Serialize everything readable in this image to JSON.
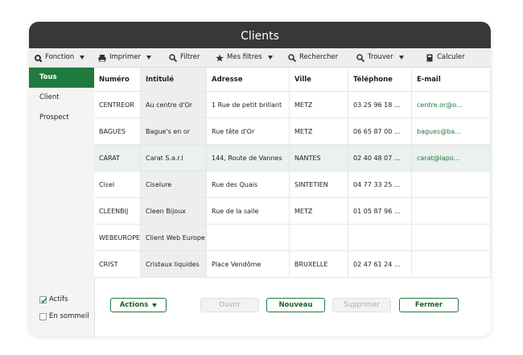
{
  "window": {
    "title": "Clients"
  },
  "toolbar": [
    "Fonction",
    "Imprimer",
    "Filtrer",
    "Mes filtres",
    "Rechercher",
    "Trouver",
    "Calculer"
  ],
  "sidebar": {
    "filters": [
      "Tous",
      "Client",
      "Prospect"
    ],
    "checkboxes": [
      "Actifs",
      "En sommeil"
    ]
  },
  "table": {
    "columns": [
      "Numéro",
      "Intitulé",
      "Adresse",
      "Ville",
      "Téléphone",
      "E-mail"
    ],
    "rows": [
      [
        "CENTREOR",
        "Au centre d'Or",
        "1 Rue de petit brillant",
        "METZ",
        "03 25 96 18 ...",
        "centre.or@o..."
      ],
      [
        "BAGUES",
        "Bague's en or",
        "Rue tête d'Or",
        "METZ",
        "06 65 87 00 ...",
        "bagues@ba..."
      ],
      [
        "CARAT",
        "Carat S.a.r.l",
        "144, Route de Vannes",
        "NANTES",
        "02 40 48 07 ...",
        "carat@lapo..."
      ],
      [
        "Cisel",
        "Ciselure",
        "Rue des Quais",
        "SINTETIEN",
        "04 77 33 25 ...",
        null
      ],
      [
        "CLEENBIJ",
        "Cleen Bijoux",
        "Rue de la salle",
        "METZ",
        "01 05 87 96 ...",
        null
      ],
      [
        "WEBEUROPE",
        "Client Web Europe",
        null,
        null,
        null,
        null
      ],
      [
        "CRIST",
        "Cristaux liquides",
        "Place Vendôme",
        "BRUXELLE",
        "02 47 61 24 ...",
        null
      ]
    ]
  },
  "buttons": [
    "Actions",
    "Ouvrir",
    "Nouveau",
    "Supprimer",
    "Fermer"
  ]
}
